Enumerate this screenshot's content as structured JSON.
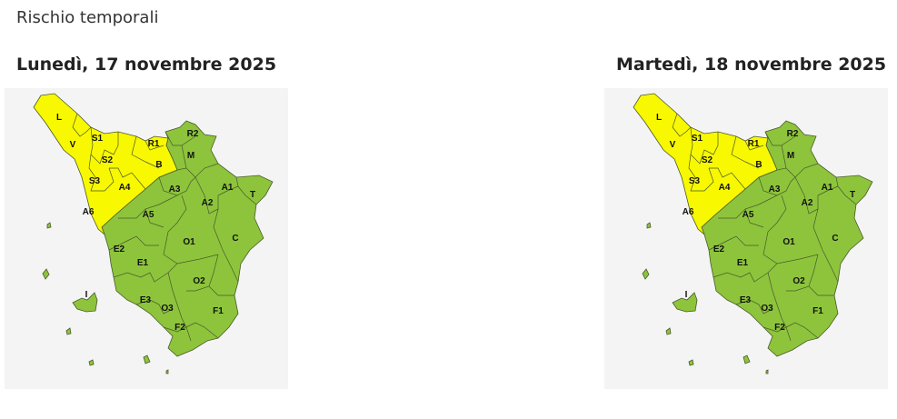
{
  "page_title": "Rischio temporali",
  "colors": {
    "yellow": "#f8f800",
    "green": "#8dc43c",
    "border": "#4a5a2a",
    "map_bg": "#f4f4f4"
  },
  "maps": [
    {
      "date": "Lunedì, 17 novembre 2025",
      "zones": {
        "L": "yellow",
        "V": "yellow",
        "S1": "yellow",
        "S2": "yellow",
        "S3": "yellow",
        "R1": "yellow",
        "B": "yellow",
        "A4": "yellow",
        "A6": "yellow",
        "R2": "green",
        "M": "green",
        "A1": "green",
        "A2": "green",
        "A3": "green",
        "A5": "green",
        "T": "green",
        "C": "green",
        "O1": "green",
        "O2": "green",
        "O3": "green",
        "E1": "green",
        "E2": "green",
        "E3": "green",
        "F1": "green",
        "F2": "green",
        "I": "green"
      }
    },
    {
      "date": "Martedì, 18 novembre 2025",
      "zones": {
        "L": "yellow",
        "V": "yellow",
        "S1": "yellow",
        "S2": "yellow",
        "S3": "yellow",
        "R1": "yellow",
        "B": "yellow",
        "A4": "yellow",
        "A6": "yellow",
        "R2": "green",
        "M": "green",
        "A1": "green",
        "A2": "green",
        "A3": "green",
        "A5": "green",
        "T": "green",
        "C": "green",
        "O1": "green",
        "O2": "green",
        "O3": "green",
        "E1": "green",
        "E2": "green",
        "E3": "green",
        "F1": "green",
        "F2": "green",
        "I": "green"
      }
    }
  ]
}
